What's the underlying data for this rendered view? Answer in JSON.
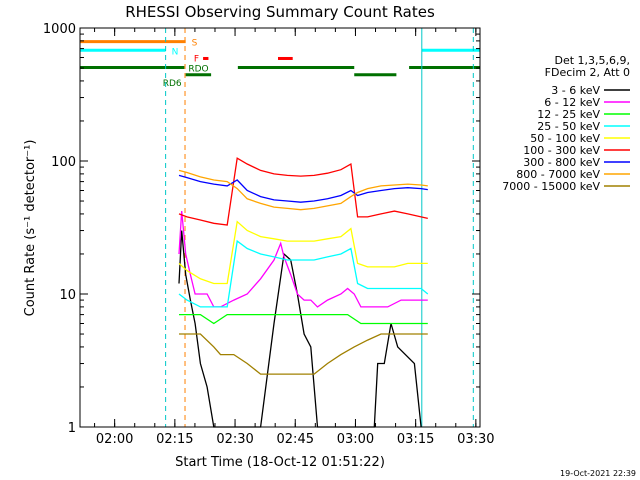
{
  "chart_data": {
    "type": "line",
    "title": "RHESSI Observing Summary Count Rates",
    "xlabel": "Start Time (18-Oct-12 01:51:22)",
    "ylabel": "Count Rate (s⁻¹ detector⁻¹)",
    "yscale": "log",
    "xlim": [
      0,
      5980
    ],
    "ylim": [
      1,
      1000
    ],
    "x_ticks": [
      {
        "t": 518,
        "label": "02:00"
      },
      {
        "t": 1418,
        "label": "02:15"
      },
      {
        "t": 2318,
        "label": "02:30"
      },
      {
        "t": 3218,
        "label": "02:45"
      },
      {
        "t": 4118,
        "label": "03:00"
      },
      {
        "t": 5018,
        "label": "03:15"
      },
      {
        "t": 5918,
        "label": "03:30"
      }
    ],
    "y_ticks": [
      {
        "v": 1,
        "label": "1"
      },
      {
        "v": 10,
        "label": "10"
      },
      {
        "v": 100,
        "label": "100"
      },
      {
        "v": 1000,
        "label": "1000"
      }
    ],
    "legend_header": [
      "Det 1,3,5,6,9,",
      "FDecim 2, Att 0"
    ],
    "legend_position": "right",
    "series": [
      {
        "name": "3 - 6 keV",
        "color": "#000000",
        "points": [
          [
            1480,
            12
          ],
          [
            1520,
            30
          ],
          [
            1580,
            14
          ],
          [
            1650,
            9
          ],
          [
            1720,
            6
          ],
          [
            1800,
            3
          ],
          [
            1900,
            2
          ],
          [
            2000,
            1
          ],
          [
            2700,
            1
          ],
          [
            2900,
            6
          ],
          [
            3050,
            20
          ],
          [
            3150,
            18
          ],
          [
            3250,
            10
          ],
          [
            3350,
            5
          ],
          [
            3450,
            4
          ],
          [
            3550,
            1
          ],
          [
            4400,
            1
          ],
          [
            4450,
            3
          ],
          [
            4550,
            3
          ],
          [
            4650,
            6
          ],
          [
            4750,
            4
          ],
          [
            5000,
            3
          ],
          [
            5100,
            1
          ]
        ]
      },
      {
        "name": "6 - 12 keV",
        "color": "#ff00ff",
        "points": [
          [
            1480,
            20
          ],
          [
            1520,
            42
          ],
          [
            1580,
            20
          ],
          [
            1650,
            14
          ],
          [
            1720,
            10
          ],
          [
            1800,
            10
          ],
          [
            1900,
            10
          ],
          [
            2000,
            8
          ],
          [
            2100,
            8
          ],
          [
            2300,
            9
          ],
          [
            2500,
            10
          ],
          [
            2700,
            13
          ],
          [
            2900,
            18
          ],
          [
            3000,
            24
          ],
          [
            3050,
            19
          ],
          [
            3150,
            14
          ],
          [
            3250,
            10
          ],
          [
            3350,
            9
          ],
          [
            3450,
            9
          ],
          [
            3550,
            8
          ],
          [
            3700,
            9
          ],
          [
            3900,
            10
          ],
          [
            4000,
            11
          ],
          [
            4100,
            10
          ],
          [
            4200,
            8
          ],
          [
            4400,
            8
          ],
          [
            4600,
            8
          ],
          [
            4800,
            9
          ],
          [
            5000,
            9
          ],
          [
            5200,
            9
          ]
        ]
      },
      {
        "name": "12 - 25 keV",
        "color": "#00ff00",
        "points": [
          [
            1480,
            7
          ],
          [
            1600,
            7
          ],
          [
            1800,
            7
          ],
          [
            2000,
            6
          ],
          [
            2200,
            7
          ],
          [
            2400,
            7
          ],
          [
            2600,
            7
          ],
          [
            2800,
            7
          ],
          [
            3000,
            7
          ],
          [
            3200,
            7
          ],
          [
            3400,
            7
          ],
          [
            3600,
            7
          ],
          [
            3800,
            7
          ],
          [
            4000,
            7
          ],
          [
            4200,
            6
          ],
          [
            4400,
            6
          ],
          [
            4600,
            6
          ],
          [
            4800,
            6
          ],
          [
            5000,
            6
          ],
          [
            5200,
            6
          ]
        ]
      },
      {
        "name": "25 - 50 keV",
        "color": "#00ffff",
        "points": [
          [
            1480,
            10
          ],
          [
            1600,
            9
          ],
          [
            1800,
            8
          ],
          [
            2000,
            8
          ],
          [
            2200,
            8
          ],
          [
            2350,
            25
          ],
          [
            2500,
            22
          ],
          [
            2700,
            20
          ],
          [
            2900,
            19
          ],
          [
            3100,
            18
          ],
          [
            3300,
            18
          ],
          [
            3500,
            18
          ],
          [
            3700,
            19
          ],
          [
            3900,
            20
          ],
          [
            4050,
            22
          ],
          [
            4150,
            12
          ],
          [
            4300,
            11
          ],
          [
            4500,
            11
          ],
          [
            4700,
            11
          ],
          [
            4900,
            11
          ],
          [
            5000,
            11
          ],
          [
            5100,
            11
          ],
          [
            5200,
            10
          ]
        ]
      },
      {
        "name": "50 - 100 keV",
        "color": "#ffff00",
        "points": [
          [
            1480,
            17
          ],
          [
            1600,
            15
          ],
          [
            1800,
            13
          ],
          [
            2000,
            12
          ],
          [
            2200,
            12
          ],
          [
            2350,
            35
          ],
          [
            2500,
            30
          ],
          [
            2700,
            27
          ],
          [
            2900,
            26
          ],
          [
            3100,
            25
          ],
          [
            3300,
            25
          ],
          [
            3500,
            25
          ],
          [
            3700,
            26
          ],
          [
            3900,
            27
          ],
          [
            4050,
            31
          ],
          [
            4150,
            17
          ],
          [
            4300,
            16
          ],
          [
            4500,
            16
          ],
          [
            4700,
            16
          ],
          [
            4900,
            17
          ],
          [
            5100,
            17
          ],
          [
            5200,
            17
          ]
        ]
      },
      {
        "name": "100 - 300 keV",
        "color": "#ff0000",
        "points": [
          [
            1480,
            40
          ],
          [
            1600,
            38
          ],
          [
            1800,
            36
          ],
          [
            2000,
            34
          ],
          [
            2200,
            33
          ],
          [
            2350,
            105
          ],
          [
            2500,
            95
          ],
          [
            2700,
            85
          ],
          [
            2900,
            80
          ],
          [
            3100,
            78
          ],
          [
            3300,
            77
          ],
          [
            3500,
            78
          ],
          [
            3700,
            81
          ],
          [
            3900,
            86
          ],
          [
            4050,
            95
          ],
          [
            4150,
            38
          ],
          [
            4300,
            38
          ],
          [
            4500,
            40
          ],
          [
            4700,
            42
          ],
          [
            4900,
            40
          ],
          [
            5100,
            38
          ],
          [
            5200,
            37
          ]
        ]
      },
      {
        "name": "300 - 800 keV",
        "color": "#0000ff",
        "points": [
          [
            1480,
            78
          ],
          [
            1600,
            75
          ],
          [
            1800,
            70
          ],
          [
            2000,
            67
          ],
          [
            2200,
            65
          ],
          [
            2350,
            72
          ],
          [
            2500,
            60
          ],
          [
            2700,
            54
          ],
          [
            2900,
            51
          ],
          [
            3100,
            50
          ],
          [
            3300,
            49
          ],
          [
            3500,
            50
          ],
          [
            3700,
            52
          ],
          [
            3900,
            55
          ],
          [
            4050,
            60
          ],
          [
            4150,
            55
          ],
          [
            4300,
            58
          ],
          [
            4500,
            60
          ],
          [
            4700,
            62
          ],
          [
            4900,
            63
          ],
          [
            5100,
            62
          ],
          [
            5200,
            61
          ]
        ]
      },
      {
        "name": "800 - 7000 keV",
        "color": "#ffa500",
        "points": [
          [
            1480,
            85
          ],
          [
            1600,
            82
          ],
          [
            1800,
            76
          ],
          [
            2000,
            72
          ],
          [
            2200,
            70
          ],
          [
            2350,
            62
          ],
          [
            2500,
            52
          ],
          [
            2700,
            48
          ],
          [
            2900,
            45
          ],
          [
            3100,
            44
          ],
          [
            3300,
            43
          ],
          [
            3500,
            44
          ],
          [
            3700,
            46
          ],
          [
            3900,
            48
          ],
          [
            4050,
            54
          ],
          [
            4150,
            58
          ],
          [
            4300,
            62
          ],
          [
            4500,
            65
          ],
          [
            4700,
            66
          ],
          [
            4900,
            67
          ],
          [
            5100,
            66
          ],
          [
            5200,
            65
          ]
        ]
      },
      {
        "name": "7000 - 15000 keV",
        "color": "#a08000",
        "points": [
          [
            1480,
            5
          ],
          [
            1600,
            5
          ],
          [
            1800,
            5
          ],
          [
            2000,
            4
          ],
          [
            2100,
            3.5
          ],
          [
            2300,
            3.5
          ],
          [
            2500,
            3
          ],
          [
            2700,
            2.5
          ],
          [
            2900,
            2.5
          ],
          [
            3100,
            2.5
          ],
          [
            3300,
            2.5
          ],
          [
            3500,
            2.5
          ],
          [
            3700,
            3
          ],
          [
            3900,
            3.5
          ],
          [
            4100,
            4
          ],
          [
            4300,
            4.5
          ],
          [
            4500,
            5
          ],
          [
            4700,
            5
          ],
          [
            4900,
            5
          ],
          [
            5100,
            5
          ],
          [
            5200,
            5
          ]
        ]
      }
    ],
    "flags": [
      {
        "label": "S",
        "color": "#ff8000",
        "level": 790,
        "intervals": [
          [
            0,
            1580
          ]
        ]
      },
      {
        "label": "N",
        "color": "#00ffff",
        "level": 680,
        "intervals": [
          [
            0,
            1280
          ],
          [
            5110,
            5980
          ]
        ]
      },
      {
        "label": "F",
        "color": "#ff0000",
        "level": 590,
        "intervals": [
          [
            1840,
            1920
          ],
          [
            2960,
            3180
          ]
        ]
      },
      {
        "label": "RDO",
        "color": "#007000",
        "level": 505,
        "intervals": [
          [
            0,
            1560
          ],
          [
            2360,
            4100
          ],
          [
            4920,
            5980
          ]
        ]
      },
      {
        "label": "RD6",
        "color": "#007000",
        "level": 445,
        "intervals": [
          [
            1580,
            1960
          ],
          [
            4100,
            4730
          ]
        ]
      }
    ],
    "vertical_lines": [
      {
        "t": 1280,
        "color": "#00c8c8",
        "style": "dashed"
      },
      {
        "t": 1570,
        "color": "#ff8000",
        "style": "dashed"
      },
      {
        "t": 5110,
        "color": "#00c8c8",
        "style": "solid"
      },
      {
        "t": 5880,
        "color": "#00c8c8",
        "style": "dashed"
      }
    ],
    "timestamp": "19-Oct-2021 22:39"
  }
}
